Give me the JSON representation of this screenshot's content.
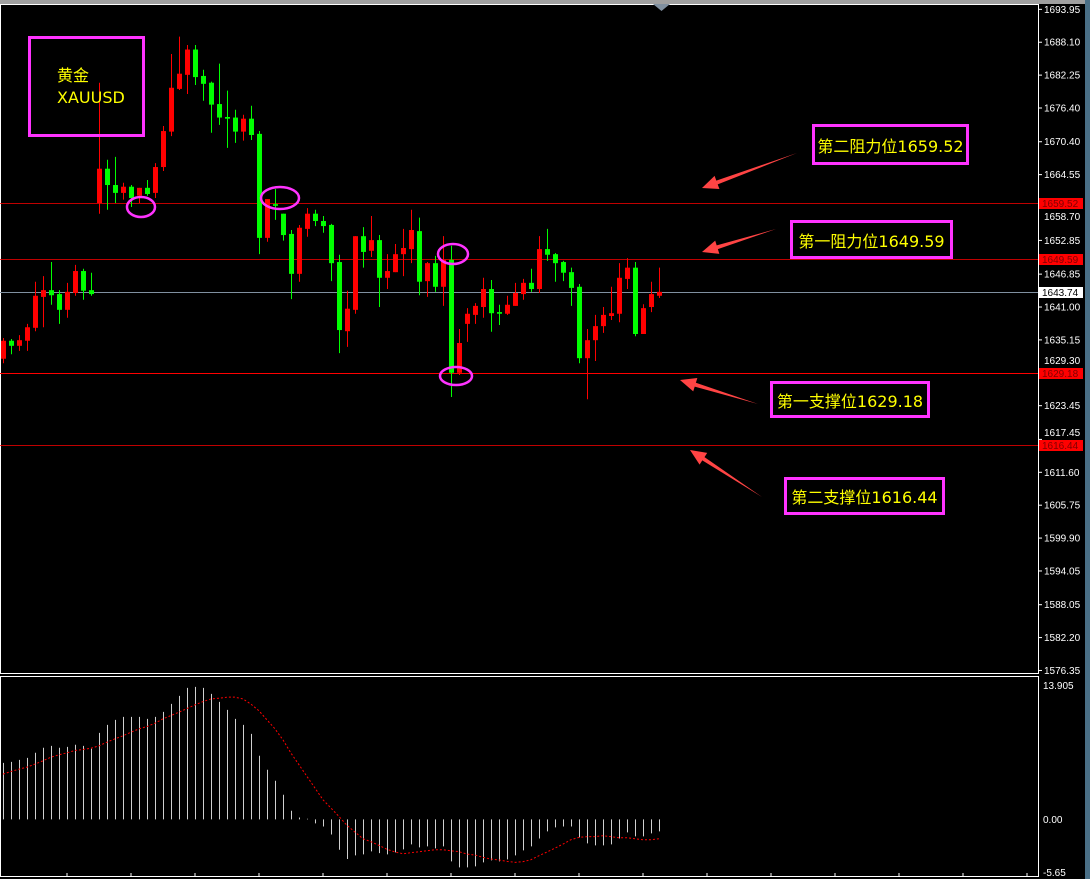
{
  "annotations": {
    "symbol_cn": "黄金",
    "symbol": "XAUUSD",
    "resistance2": "第二阻力位1659.52",
    "resistance1": "第一阻力位1649.59",
    "support1": "第一支撑位1629.18",
    "support2": "第二支撑位1616.44"
  },
  "colors": {
    "background": "#000000",
    "up_candle": "#ff0000",
    "down_candle": "#00ff00",
    "level_line": "#ff0000",
    "current_price_line": "#8090a0",
    "annotation_border": "#ff33ff",
    "annotation_text": "#ffff00",
    "arrow": "#ff4444",
    "macd_histogram": "#d0d0d0",
    "macd_signal": "#ff0000"
  },
  "chart_data": [
    {
      "type": "candlestick",
      "title": "",
      "ylim": [
        1575.9,
        1694.9
      ],
      "grid": false,
      "y_ticks": [
        "1693.95",
        "1688.10",
        "1682.25",
        "1676.40",
        "1670.40",
        "1664.55",
        "1658.70",
        "1652.85",
        "1646.85",
        "1641.00",
        "1635.15",
        "1629.30",
        "1623.45",
        "1617.45",
        "1611.60",
        "1605.75",
        "1599.90",
        "1594.05",
        "1588.05",
        "1582.20",
        "1576.35"
      ],
      "levels": [
        {
          "value": 1659.52,
          "label": "1659.52",
          "kind": "resistance"
        },
        {
          "value": 1649.59,
          "label": "1649.59",
          "kind": "resistance"
        },
        {
          "value": 1629.18,
          "label": "1629.18",
          "kind": "support"
        },
        {
          "value": 1616.44,
          "label": "1616.44",
          "kind": "support"
        }
      ],
      "current_price": {
        "value": 1643.74,
        "label": "1643.74"
      },
      "ohlc": [
        [
          1631.8,
          1635.5,
          1631.0,
          1635.0
        ],
        [
          1635.0,
          1635.3,
          1632.6,
          1634.1
        ],
        [
          1634.1,
          1636.0,
          1633.2,
          1635.1
        ],
        [
          1635.0,
          1638.0,
          1633.2,
          1637.4
        ],
        [
          1637.3,
          1645.5,
          1636.7,
          1643.0
        ],
        [
          1642.8,
          1646.5,
          1637.4,
          1644.0
        ],
        [
          1644.0,
          1649.0,
          1641.4,
          1643.1
        ],
        [
          1643.3,
          1644.0,
          1638.0,
          1640.5
        ],
        [
          1640.5,
          1645.3,
          1639.1,
          1643.7
        ],
        [
          1643.5,
          1648.5,
          1643.0,
          1647.4
        ],
        [
          1647.4,
          1647.8,
          1642.3,
          1643.9
        ],
        [
          1644.0,
          1647.1,
          1643.0,
          1643.3
        ],
        [
          1659.5,
          1680.9,
          1657.6,
          1665.6
        ],
        [
          1665.6,
          1667.2,
          1658.3,
          1662.7
        ],
        [
          1662.7,
          1667.7,
          1659.5,
          1661.3
        ],
        [
          1661.3,
          1663.1,
          1660.1,
          1662.4
        ],
        [
          1662.4,
          1662.7,
          1658.8,
          1660.4
        ],
        [
          1660.8,
          1662.2,
          1659.5,
          1662.2
        ],
        [
          1662.2,
          1663.6,
          1660.8,
          1661.1
        ],
        [
          1661.3,
          1666.6,
          1660.4,
          1665.9
        ],
        [
          1665.9,
          1673.2,
          1665.2,
          1672.3
        ],
        [
          1672.2,
          1686.0,
          1671.4,
          1680.0
        ],
        [
          1679.8,
          1689.1,
          1679.6,
          1682.5
        ],
        [
          1682.3,
          1687.6,
          1678.9,
          1686.8
        ],
        [
          1686.8,
          1687.6,
          1680.5,
          1681.9
        ],
        [
          1682.1,
          1683.2,
          1677.7,
          1680.7
        ],
        [
          1680.9,
          1681.1,
          1672.0,
          1677.0
        ],
        [
          1677.1,
          1684.3,
          1673.4,
          1674.7
        ],
        [
          1674.8,
          1679.5,
          1669.3,
          1674.5
        ],
        [
          1674.7,
          1676.1,
          1670.2,
          1672.2
        ],
        [
          1672.2,
          1675.2,
          1670.6,
          1674.5
        ],
        [
          1674.5,
          1676.8,
          1670.7,
          1671.6
        ],
        [
          1671.8,
          1672.3,
          1650.4,
          1653.3
        ],
        [
          1653.3,
          1660.2,
          1652.6,
          1660.2
        ],
        [
          1659.3,
          1662.0,
          1656.5,
          1659.0
        ],
        [
          1657.6,
          1657.6,
          1652.8,
          1653.8
        ],
        [
          1654.0,
          1654.7,
          1642.4,
          1646.9
        ],
        [
          1646.9,
          1655.6,
          1645.5,
          1655.1
        ],
        [
          1654.9,
          1658.6,
          1653.5,
          1657.6
        ],
        [
          1657.6,
          1658.3,
          1655.4,
          1656.3
        ],
        [
          1656.3,
          1657.2,
          1654.2,
          1655.4
        ],
        [
          1655.6,
          1655.8,
          1645.6,
          1648.8
        ],
        [
          1649.0,
          1650.3,
          1632.8,
          1636.9
        ],
        [
          1636.7,
          1643.9,
          1633.9,
          1640.7
        ],
        [
          1640.5,
          1653.6,
          1639.8,
          1653.6
        ],
        [
          1653.6,
          1655.2,
          1648.0,
          1650.8
        ],
        [
          1651.0,
          1657.2,
          1649.9,
          1652.9
        ],
        [
          1652.9,
          1653.8,
          1641.0,
          1646.2
        ],
        [
          1646.2,
          1650.4,
          1644.2,
          1647.4
        ],
        [
          1647.2,
          1652.2,
          1647.2,
          1650.4
        ],
        [
          1650.4,
          1654.9,
          1646.5,
          1651.5
        ],
        [
          1651.3,
          1658.3,
          1648.8,
          1654.7
        ],
        [
          1654.5,
          1656.9,
          1643.1,
          1645.5
        ],
        [
          1645.6,
          1649.0,
          1642.8,
          1648.8
        ],
        [
          1648.8,
          1650.1,
          1643.7,
          1644.6
        ],
        [
          1644.6,
          1653.6,
          1641.2,
          1649.4
        ],
        [
          1649.4,
          1651.9,
          1625.0,
          1629.3
        ],
        [
          1629.3,
          1637.1,
          1628.9,
          1634.6
        ],
        [
          1638.0,
          1640.8,
          1634.8,
          1639.8
        ],
        [
          1639.6,
          1641.7,
          1638.0,
          1641.2
        ],
        [
          1641.0,
          1646.2,
          1639.1,
          1644.2
        ],
        [
          1644.2,
          1645.8,
          1636.6,
          1639.9
        ],
        [
          1640.1,
          1641.4,
          1637.8,
          1639.8
        ],
        [
          1639.8,
          1643.0,
          1639.6,
          1641.4
        ],
        [
          1641.2,
          1645.3,
          1641.2,
          1643.5
        ],
        [
          1643.3,
          1646.0,
          1642.3,
          1645.3
        ],
        [
          1645.3,
          1647.8,
          1643.7,
          1644.2
        ],
        [
          1644.2,
          1653.6,
          1643.5,
          1651.3
        ],
        [
          1651.3,
          1654.9,
          1649.2,
          1650.3
        ],
        [
          1650.4,
          1650.6,
          1645.5,
          1648.8
        ],
        [
          1649.0,
          1649.2,
          1645.6,
          1647.1
        ],
        [
          1647.2,
          1648.0,
          1641.2,
          1644.4
        ],
        [
          1644.6,
          1645.1,
          1631.0,
          1631.9
        ],
        [
          1631.9,
          1637.1,
          1624.6,
          1635.1
        ],
        [
          1635.1,
          1639.6,
          1631.4,
          1637.6
        ],
        [
          1637.6,
          1641.0,
          1636.4,
          1639.6
        ],
        [
          1639.4,
          1644.6,
          1638.7,
          1639.9
        ],
        [
          1639.8,
          1648.8,
          1638.3,
          1646.2
        ],
        [
          1646.0,
          1649.7,
          1644.2,
          1648.0
        ],
        [
          1648.0,
          1649.0,
          1635.8,
          1636.2
        ],
        [
          1636.2,
          1641.5,
          1636.2,
          1640.8
        ],
        [
          1641.0,
          1645.5,
          1640.1,
          1643.3
        ],
        [
          1643.0,
          1648.0,
          1642.6,
          1643.7
        ]
      ]
    },
    {
      "type": "bar+line",
      "title": "",
      "ylim": [
        -5.8,
        14.7
      ],
      "y_ticks": [
        "13.905",
        "0.00",
        "-5.65"
      ],
      "y_tick_values": [
        13.905,
        0,
        -5.65
      ],
      "histogram": [
        5.8,
        5.9,
        6.1,
        6.31,
        6.83,
        7.34,
        7.54,
        7.34,
        7.44,
        7.65,
        7.54,
        7.24,
        8.87,
        9.69,
        10.2,
        10.51,
        10.51,
        10.51,
        10.31,
        10.51,
        11.02,
        11.84,
        12.66,
        13.48,
        13.58,
        13.48,
        12.87,
        12.05,
        11.23,
        10.31,
        9.69,
        8.77,
        6.52,
        5.09,
        3.96,
        2.53,
        0.89,
        0.2,
        0.07,
        -0.41,
        -0.72,
        -1.54,
        -3.11,
        -4.06,
        -3.69,
        -3.58,
        -3.28,
        -3.45,
        -3.58,
        -3.38,
        -3.07,
        -2.56,
        -2.87,
        -2.76,
        -2.97,
        -2.76,
        -4.3,
        -4.91,
        -4.91,
        -4.81,
        -4.4,
        -4.2,
        -4.3,
        -4.1,
        -3.69,
        -3.17,
        -2.76,
        -1.95,
        -1.23,
        -0.82,
        -0.72,
        -0.72,
        -1.84,
        -2.46,
        -2.66,
        -2.66,
        -2.56,
        -1.95,
        -1.33,
        -1.74,
        -1.74,
        -1.43,
        -1.23
      ],
      "signal": [
        4.64,
        4.91,
        5.15,
        5.36,
        5.67,
        6.01,
        6.38,
        6.62,
        6.83,
        7.07,
        7.17,
        7.3,
        7.54,
        7.92,
        8.26,
        8.57,
        8.94,
        9.28,
        9.52,
        9.86,
        10.31,
        10.65,
        10.99,
        11.37,
        11.74,
        12.08,
        12.35,
        12.42,
        12.53,
        12.53,
        12.35,
        11.81,
        11.13,
        10.2,
        9.28,
        8.15,
        6.79,
        5.6,
        4.4,
        3.21,
        2.01,
        1.16,
        0.3,
        -0.61,
        -1.3,
        -1.98,
        -2.29,
        -2.66,
        -3.07,
        -3.34,
        -3.52,
        -3.41,
        -3.31,
        -3.21,
        -3.11,
        -3.11,
        -3.21,
        -3.31,
        -3.55,
        -3.65,
        -3.89,
        -4.06,
        -4.16,
        -4.3,
        -4.4,
        -4.33,
        -4.13,
        -3.72,
        -3.34,
        -2.94,
        -2.53,
        -2.08,
        -1.84,
        -1.77,
        -1.77,
        -1.67,
        -1.77,
        -1.88,
        -1.88,
        -1.98,
        -2.08,
        -2.08,
        -1.98
      ]
    }
  ]
}
